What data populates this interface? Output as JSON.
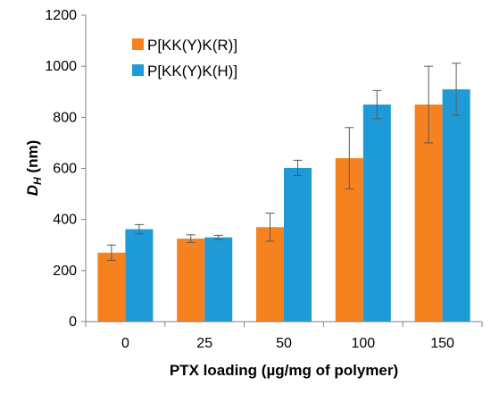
{
  "chart_data": {
    "type": "bar",
    "categories": [
      "0",
      "25",
      "50",
      "100",
      "150"
    ],
    "series": [
      {
        "name": "P[KK(Y)K(R)]",
        "color": "#F5821F",
        "values": [
          270,
          325,
          370,
          640,
          850
        ],
        "errors": [
          30,
          15,
          55,
          120,
          150
        ]
      },
      {
        "name": "P[KK(Y)K(H)]",
        "color": "#1E9BD7",
        "values": [
          362,
          330,
          602,
          850,
          910
        ],
        "errors": [
          18,
          8,
          30,
          55,
          102
        ]
      }
    ],
    "xlabel": "PTX loading (µg/mg of polymer)",
    "ylabel": {
      "main": "D",
      "sub": "H",
      "unit": " (nm)"
    },
    "yticks": [
      "0",
      "200",
      "400",
      "600",
      "800",
      "1000",
      "1200"
    ],
    "ylim": [
      0,
      1200
    ],
    "grid": false,
    "legend_position": "top-left",
    "error_bar_color": "#595959",
    "axis_color": "#808080"
  }
}
